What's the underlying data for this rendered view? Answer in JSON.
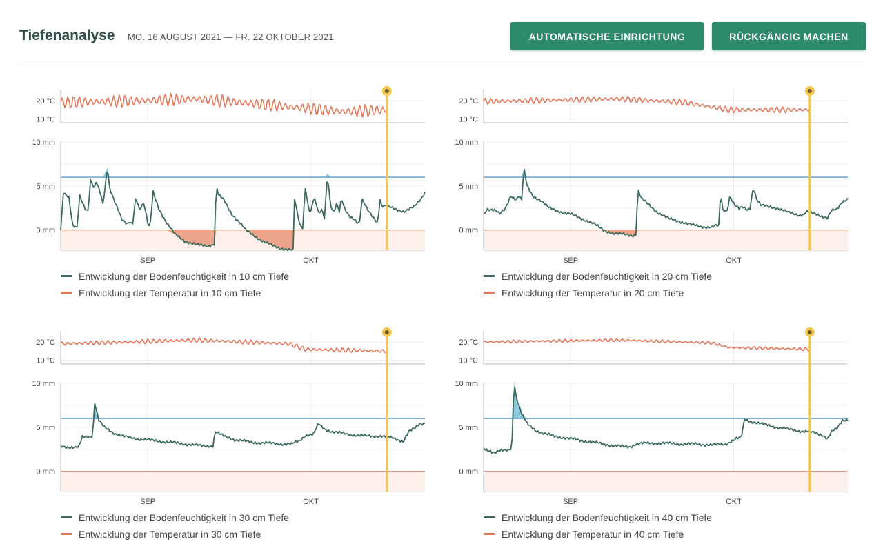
{
  "header": {
    "title": "Tiefenanalyse",
    "date_range": "MO. 16 AUGUST 2021 — FR. 22 OKTOBER 2021",
    "auto_setup_label": "AUTOMATISCHE EINRICHTUNG",
    "undo_label": "RÜCKGÄNGIG MACHEN"
  },
  "colors": {
    "moisture": "#3d6b5a",
    "temperature": "#e4775a",
    "upper_threshold": "#5b9bc8",
    "lower_threshold": "#e49a82",
    "deficit_fill": "#eda48c",
    "excess_fill": "#8fc9e0",
    "cursor": "#f5c54a",
    "brand": "#2e8b6a"
  },
  "chart_data": [
    {
      "type": "line",
      "depth_cm": 10,
      "x_axis": {
        "start": "2021-08-16",
        "end": "2021-10-22",
        "ticks": [
          "SEP",
          "OKT"
        ]
      },
      "cursor_date": "2021-10-15",
      "temperature": {
        "yticks": [
          "20 °C",
          "10 °C"
        ],
        "ylim": [
          8,
          26
        ],
        "tick_values": [
          20,
          10
        ],
        "legend": "Entwicklung der Temperatur in 10 cm Tiefe",
        "mean": [
          [
            0,
            19
          ],
          [
            15,
            20
          ],
          [
            25,
            21
          ],
          [
            37,
            18
          ],
          [
            52,
            14
          ],
          [
            60,
            15
          ]
        ],
        "amplitude": 3.2,
        "end": "2021-10-15"
      },
      "moisture": {
        "yticks": [
          "10 mm",
          "5 mm",
          "0 mm"
        ],
        "ylim": [
          -2.3,
          10
        ],
        "tick_values": [
          10,
          5,
          0
        ],
        "upper_threshold": 6,
        "lower_threshold": 0,
        "legend": "Entwicklung der Bodenfeuchtigkeit in 10 cm Tiefe",
        "points": [
          [
            0,
            0
          ],
          [
            0.5,
            4.3
          ],
          [
            1.5,
            3.8
          ],
          [
            2.2,
            0.5
          ],
          [
            3,
            0.2
          ],
          [
            3.5,
            3.8
          ],
          [
            4.5,
            2.4
          ],
          [
            5,
            2.2
          ],
          [
            5.5,
            5.7
          ],
          [
            6.2,
            4.8
          ],
          [
            6.5,
            5.5
          ],
          [
            7.2,
            4.4
          ],
          [
            7.8,
            2.8
          ],
          [
            8.6,
            7.1
          ],
          [
            9,
            4.8
          ],
          [
            9.8,
            3.5
          ],
          [
            10.8,
            2
          ],
          [
            11.2,
            1.2
          ],
          [
            12.2,
            0.6
          ],
          [
            12.8,
            0.9
          ],
          [
            13.2,
            0.5
          ],
          [
            13.8,
            3.8
          ],
          [
            14.5,
            2.4
          ],
          [
            15.3,
            3.1
          ],
          [
            16,
            0.8
          ],
          [
            16.4,
            0.1
          ],
          [
            17,
            4.3
          ],
          [
            18,
            2.5
          ],
          [
            19.5,
            0.8
          ],
          [
            21,
            -0.5
          ],
          [
            23,
            -1.3
          ],
          [
            25,
            -1.7
          ],
          [
            27,
            -1.8
          ],
          [
            28.3,
            -1.6
          ],
          [
            28.6,
            5.2
          ],
          [
            29,
            4
          ],
          [
            30,
            3.4
          ],
          [
            31.5,
            1.8
          ],
          [
            33,
            0.8
          ],
          [
            34,
            0
          ],
          [
            35.5,
            -0.6
          ],
          [
            37.5,
            -1.4
          ],
          [
            39.5,
            -1.9
          ],
          [
            41.5,
            -2.2
          ],
          [
            42.5,
            -2.3
          ],
          [
            42.8,
            -2.3
          ],
          [
            43,
            3.5
          ],
          [
            43.5,
            2
          ],
          [
            44,
            0.6
          ],
          [
            44.5,
            0.3
          ],
          [
            45,
            4.9
          ],
          [
            45.6,
            2.4
          ],
          [
            46,
            2.1
          ],
          [
            46.6,
            3.7
          ],
          [
            47.5,
            1.8
          ],
          [
            48,
            2.3
          ],
          [
            48.5,
            1.4
          ],
          [
            49.1,
            6.4
          ],
          [
            49.6,
            2.9
          ],
          [
            50.2,
            2
          ],
          [
            50.8,
            3
          ],
          [
            51.3,
            1.9
          ],
          [
            51.6,
            3.6
          ],
          [
            52.2,
            2.4
          ],
          [
            53.1,
            1.6
          ],
          [
            54,
            1.3
          ],
          [
            54.6,
            0.8
          ],
          [
            55,
            0.9
          ],
          [
            55.4,
            3.5
          ],
          [
            56.4,
            2.3
          ],
          [
            57.6,
            1.4
          ],
          [
            58.4,
            0.8
          ],
          [
            58.7,
            4.3
          ],
          [
            58.8,
            2.8
          ],
          [
            61,
            2.5
          ],
          [
            63.2,
            2.1
          ],
          [
            65,
            2.6
          ],
          [
            66.2,
            3.5
          ],
          [
            67,
            4.3
          ]
        ]
      }
    },
    {
      "type": "line",
      "depth_cm": 20,
      "x_axis": {
        "start": "2021-08-16",
        "end": "2021-10-22",
        "ticks": [
          "SEP",
          "OKT"
        ]
      },
      "cursor_date": "2021-10-15",
      "temperature": {
        "yticks": [
          "20 °C",
          "10 °C"
        ],
        "ylim": [
          8,
          26
        ],
        "tick_values": [
          20,
          10
        ],
        "legend": "Entwicklung der Temperatur in 20 cm Tiefe",
        "mean": [
          [
            0,
            19.5
          ],
          [
            25,
            21
          ],
          [
            37,
            19
          ],
          [
            45,
            15
          ],
          [
            60,
            15
          ]
        ],
        "amplitude": 1.6,
        "end": "2021-10-15"
      },
      "moisture": {
        "yticks": [
          "10 mm",
          "5 mm",
          "0 mm"
        ],
        "ylim": [
          -2.3,
          10
        ],
        "tick_values": [
          10,
          5,
          0
        ],
        "upper_threshold": 6,
        "lower_threshold": 0,
        "legend": "Entwicklung der Bodenfeuchtigkeit in 20 cm Tiefe",
        "points": [
          [
            0,
            1.7
          ],
          [
            0.6,
            2.4
          ],
          [
            2,
            2.3
          ],
          [
            3,
            1.8
          ],
          [
            4,
            2.4
          ],
          [
            5,
            3.9
          ],
          [
            6,
            3.5
          ],
          [
            6.5,
            3.9
          ],
          [
            7,
            3.4
          ],
          [
            7.4,
            7
          ],
          [
            8,
            5
          ],
          [
            9,
            3.9
          ],
          [
            10.5,
            3.4
          ],
          [
            12,
            2.5
          ],
          [
            14,
            2.1
          ],
          [
            16,
            1.8
          ],
          [
            18,
            1.3
          ],
          [
            20,
            0.8
          ],
          [
            22,
            0
          ],
          [
            24,
            -0.4
          ],
          [
            26,
            -0.5
          ],
          [
            27.5,
            -0.6
          ],
          [
            28,
            -0.5
          ],
          [
            28.4,
            4.6
          ],
          [
            29,
            3.6
          ],
          [
            30.5,
            2.8
          ],
          [
            32,
            2
          ],
          [
            34,
            1.3
          ],
          [
            36,
            1
          ],
          [
            38,
            0.6
          ],
          [
            40,
            0.4
          ],
          [
            42,
            0.3
          ],
          [
            42.8,
            0.5
          ],
          [
            43.3,
            0.4
          ],
          [
            43.6,
            4.4
          ],
          [
            44,
            2.3
          ],
          [
            44.8,
            2.2
          ],
          [
            45.3,
            3.9
          ],
          [
            46.2,
            2.8
          ],
          [
            47,
            2.4
          ],
          [
            47.6,
            2.6
          ],
          [
            48.5,
            2.3
          ],
          [
            49,
            2.5
          ],
          [
            49.6,
            4.9
          ],
          [
            50.3,
            3.4
          ],
          [
            51,
            2.8
          ],
          [
            52,
            2.7
          ],
          [
            54,
            2.5
          ],
          [
            56,
            2
          ],
          [
            58,
            1.7
          ],
          [
            59,
            1.8
          ],
          [
            59.3,
            2.1
          ],
          [
            61,
            1.8
          ],
          [
            63.3,
            1.4
          ],
          [
            64,
            2.2
          ],
          [
            65,
            2.3
          ],
          [
            66,
            3.2
          ],
          [
            67,
            3.6
          ]
        ]
      }
    },
    {
      "type": "line",
      "depth_cm": 30,
      "x_axis": {
        "start": "2021-08-16",
        "end": "2021-10-22",
        "ticks": [
          "SEP",
          "OKT"
        ]
      },
      "cursor_date": "2021-10-15",
      "temperature": {
        "yticks": [
          "20 °C",
          "10 °C"
        ],
        "ylim": [
          8,
          26
        ],
        "tick_values": [
          20,
          10
        ],
        "legend": "Entwicklung der Temperatur in 30 cm Tiefe",
        "mean": [
          [
            0,
            19
          ],
          [
            25,
            21
          ],
          [
            42,
            19
          ],
          [
            45,
            16
          ],
          [
            60,
            15
          ]
        ],
        "amplitude": 1.2,
        "end": "2021-10-15"
      },
      "moisture": {
        "yticks": [
          "10 mm",
          "5 mm",
          "0 mm"
        ],
        "ylim": [
          -2.3,
          10
        ],
        "tick_values": [
          10,
          5,
          0
        ],
        "upper_threshold": 6,
        "lower_threshold": 0,
        "legend": "Entwicklung der Bodenfeuchtigkeit in 30 cm Tiefe",
        "points": [
          [
            0,
            2.9
          ],
          [
            2,
            2.7
          ],
          [
            3.3,
            2.7
          ],
          [
            4,
            3.9
          ],
          [
            5.5,
            4
          ],
          [
            5.9,
            4
          ],
          [
            6.2,
            7.9
          ],
          [
            7,
            5.8
          ],
          [
            8,
            5
          ],
          [
            10,
            4.3
          ],
          [
            12,
            3.9
          ],
          [
            14,
            3.7
          ],
          [
            17,
            3.5
          ],
          [
            20,
            3.3
          ],
          [
            23,
            3.1
          ],
          [
            26,
            2.9
          ],
          [
            28,
            2.9
          ],
          [
            28.4,
            4.5
          ],
          [
            30,
            4
          ],
          [
            32,
            3.6
          ],
          [
            35,
            3.3
          ],
          [
            38,
            3.2
          ],
          [
            41,
            3.1
          ],
          [
            42.5,
            3.1
          ],
          [
            44,
            3.5
          ],
          [
            45,
            4.1
          ],
          [
            46.5,
            4.2
          ],
          [
            47.4,
            5.4
          ],
          [
            48.5,
            4.8
          ],
          [
            50,
            4.5
          ],
          [
            53,
            4.2
          ],
          [
            56,
            4
          ],
          [
            59,
            4
          ],
          [
            61,
            3.8
          ],
          [
            63,
            3.4
          ],
          [
            64,
            4.5
          ],
          [
            65,
            4.8
          ],
          [
            66,
            5.4
          ],
          [
            67,
            5.5
          ]
        ]
      }
    },
    {
      "type": "line",
      "depth_cm": 40,
      "x_axis": {
        "start": "2021-08-16",
        "end": "2021-10-22",
        "ticks": [
          "SEP",
          "OKT"
        ]
      },
      "cursor_date": "2021-10-15",
      "temperature": {
        "yticks": [
          "20 °C",
          "10 °C"
        ],
        "ylim": [
          8,
          26
        ],
        "tick_values": [
          20,
          10
        ],
        "legend": "Entwicklung der Temperatur in 40 cm Tiefe",
        "mean": [
          [
            0,
            20
          ],
          [
            25,
            21
          ],
          [
            42,
            19.5
          ],
          [
            45,
            17
          ],
          [
            60,
            16
          ]
        ],
        "amplitude": 0.8,
        "end": "2021-10-15"
      },
      "moisture": {
        "yticks": [
          "10 mm",
          "5 mm",
          "0 mm"
        ],
        "ylim": [
          -2.3,
          10
        ],
        "tick_values": [
          10,
          5,
          0
        ],
        "upper_threshold": 6,
        "lower_threshold": 0,
        "legend": "Entwicklung der Bodenfeuchtigkeit in 40 cm Tiefe",
        "points": [
          [
            0,
            2.6
          ],
          [
            1,
            2.4
          ],
          [
            2,
            2.1
          ],
          [
            3,
            2.3
          ],
          [
            4.5,
            2.4
          ],
          [
            5.2,
            2.7
          ],
          [
            5.6,
            10.2
          ],
          [
            6,
            8.5
          ],
          [
            7,
            6.5
          ],
          [
            8,
            5.4
          ],
          [
            9.5,
            4.7
          ],
          [
            11,
            4.3
          ],
          [
            13,
            4
          ],
          [
            15,
            3.8
          ],
          [
            18,
            3.5
          ],
          [
            21,
            3.2
          ],
          [
            24,
            2.9
          ],
          [
            26,
            2.8
          ],
          [
            27,
            2.8
          ],
          [
            28,
            3.1
          ],
          [
            30,
            3.2
          ],
          [
            33,
            3.2
          ],
          [
            36,
            3.1
          ],
          [
            39,
            3.1
          ],
          [
            42,
            3
          ],
          [
            44.5,
            3.1
          ],
          [
            46.5,
            3.7
          ],
          [
            47.4,
            3.8
          ],
          [
            48,
            5.9
          ],
          [
            49,
            5.7
          ],
          [
            51,
            5.4
          ],
          [
            54,
            5
          ],
          [
            56,
            4.8
          ],
          [
            58,
            4.6
          ],
          [
            60,
            4.5
          ],
          [
            62.5,
            4.1
          ],
          [
            63.3,
            3.7
          ],
          [
            64,
            4.5
          ],
          [
            65,
            4.8
          ],
          [
            66,
            5.8
          ],
          [
            67,
            5.9
          ]
        ]
      }
    }
  ]
}
